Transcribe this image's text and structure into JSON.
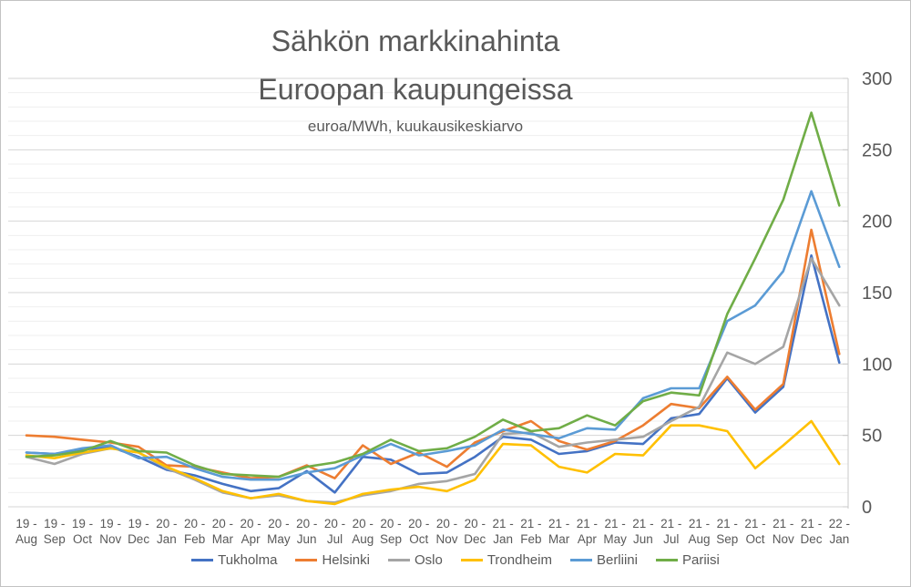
{
  "chart_data": {
    "type": "line",
    "title_line1": "Sähkön markkinahinta",
    "title_line2": "Euroopan kaupungeissa",
    "subtitle": "euroa/MWh, kuukausikeskiarvo",
    "legend_position": "bottom",
    "grid": "horizontal, minor every 10, major every 50",
    "y_axis": {
      "side": "right",
      "min": 0,
      "max": 300,
      "major_step": 50,
      "minor_step": 10,
      "labels": [
        "0",
        "50",
        "100",
        "150",
        "200",
        "250",
        "300"
      ]
    },
    "categories": [
      "19 - Aug",
      "19 - Sep",
      "19 - Oct",
      "19 - Nov",
      "19 - Dec",
      "20 - Jan",
      "20 - Feb",
      "20 - Mar",
      "20 - Apr",
      "20 - May",
      "20 - Jun",
      "20 - Jul",
      "20 - Aug",
      "20 - Sep",
      "20 - Oct",
      "20 - Nov",
      "20 - Dec",
      "21 - Jan",
      "21 - Feb",
      "21 - Mar",
      "21 - Apr",
      "21 - May",
      "21 - Jun",
      "21 - Jul",
      "21 - Aug",
      "21 - Sep",
      "21 - Oct",
      "21 - Nov",
      "21 - Dec",
      "22 - Jan"
    ],
    "series": [
      {
        "name": "Tukholma",
        "color": "#4472C4",
        "values": [
          38,
          37,
          40,
          42,
          35,
          26,
          22,
          16,
          11,
          13,
          25,
          10,
          35,
          33,
          23,
          24,
          35,
          49,
          47,
          37,
          39,
          45,
          44,
          62,
          65,
          90,
          66,
          84,
          176,
          101
        ]
      },
      {
        "name": "Helsinki",
        "color": "#ED7D31",
        "values": [
          50,
          49,
          47,
          45,
          42,
          29,
          28,
          24,
          20,
          21,
          29,
          20,
          43,
          30,
          38,
          28,
          45,
          53,
          60,
          46,
          40,
          46,
          57,
          72,
          69,
          91,
          68,
          86,
          194,
          107
        ]
      },
      {
        "name": "Oslo",
        "color": "#A5A5A5",
        "values": [
          35,
          30,
          37,
          41,
          38,
          27,
          19,
          10,
          6,
          8,
          4,
          3,
          8,
          11,
          16,
          18,
          23,
          51,
          52,
          42,
          45,
          47,
          49,
          60,
          70,
          108,
          100,
          112,
          174,
          141
        ]
      },
      {
        "name": "Trondheim",
        "color": "#FFC000",
        "values": [
          36,
          34,
          38,
          41,
          38,
          28,
          20,
          11,
          6,
          9,
          4,
          2,
          9,
          12,
          14,
          11,
          19,
          44,
          43,
          28,
          24,
          37,
          36,
          57,
          57,
          53,
          27,
          43,
          60,
          30
        ]
      },
      {
        "name": "Berliini",
        "color": "#5B9BD5",
        "values": [
          38,
          37,
          41,
          43,
          34,
          35,
          27,
          21,
          19,
          19,
          24,
          27,
          36,
          44,
          36,
          39,
          43,
          54,
          51,
          48,
          55,
          54,
          76,
          83,
          83,
          130,
          141,
          165,
          221,
          168
        ]
      },
      {
        "name": "Pariisi",
        "color": "#70AD47",
        "values": [
          35,
          36,
          39,
          46,
          39,
          38,
          29,
          23,
          22,
          21,
          28,
          31,
          37,
          47,
          39,
          41,
          49,
          61,
          53,
          55,
          64,
          57,
          74,
          80,
          78,
          135,
          174,
          215,
          276,
          211
        ]
      }
    ]
  }
}
